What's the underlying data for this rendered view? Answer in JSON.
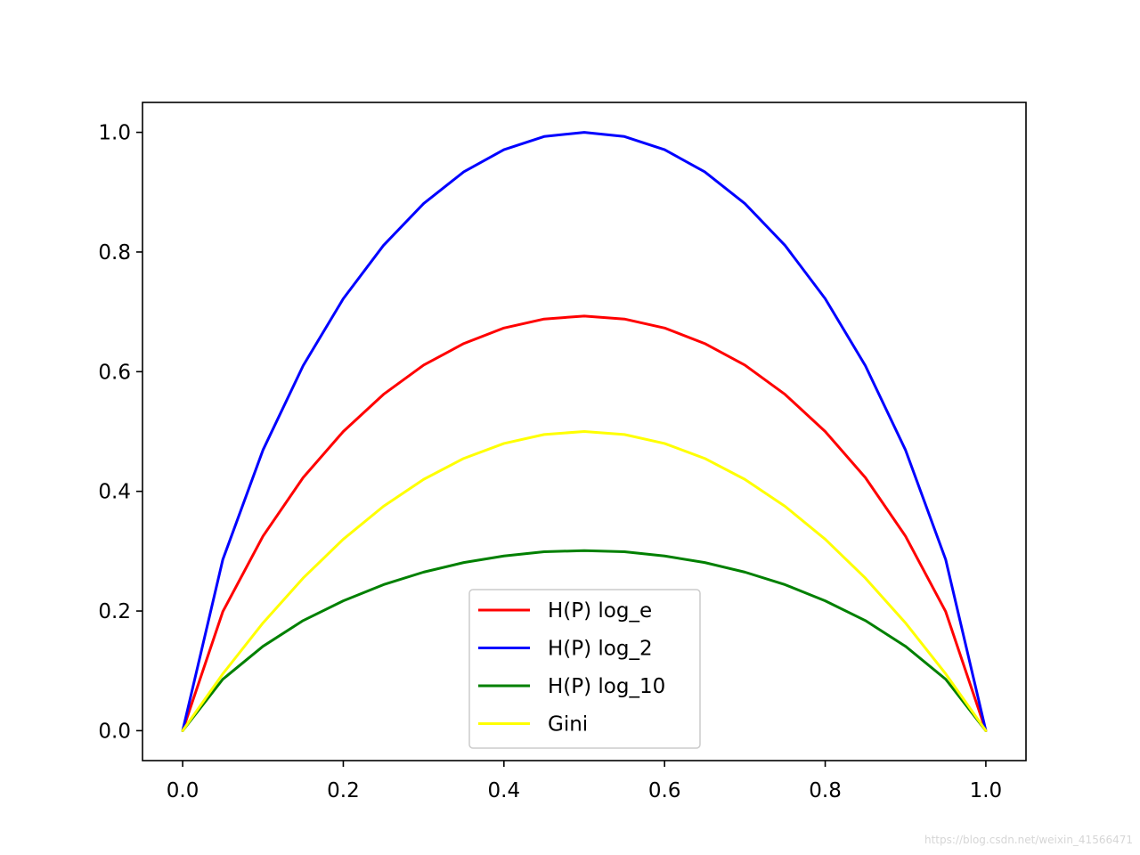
{
  "chart_data": {
    "type": "line",
    "title": "",
    "xlabel": "",
    "ylabel": "",
    "xlim": [
      -0.05,
      1.05
    ],
    "ylim": [
      -0.05,
      1.05
    ],
    "x_ticks": [
      0.0,
      0.2,
      0.4,
      0.6,
      0.8,
      1.0
    ],
    "x_tick_labels": [
      "0.0",
      "0.2",
      "0.4",
      "0.6",
      "0.8",
      "1.0"
    ],
    "y_ticks": [
      0.0,
      0.2,
      0.4,
      0.6,
      0.8,
      1.0
    ],
    "y_tick_labels": [
      "0.0",
      "0.2",
      "0.4",
      "0.6",
      "0.8",
      "1.0"
    ],
    "grid": false,
    "legend_position": "lower-center",
    "x": [
      0.0,
      0.05,
      0.1,
      0.15,
      0.2,
      0.25,
      0.3,
      0.35,
      0.4,
      0.45,
      0.5,
      0.55,
      0.6,
      0.65,
      0.7,
      0.75,
      0.8,
      0.85,
      0.9,
      0.95,
      1.0
    ],
    "series": [
      {
        "name": "H(P) log_e",
        "color": "#ff0000",
        "values": [
          0.0,
          0.199,
          0.325,
          0.423,
          0.5,
          0.562,
          0.611,
          0.647,
          0.673,
          0.688,
          0.693,
          0.688,
          0.673,
          0.647,
          0.611,
          0.562,
          0.5,
          0.423,
          0.325,
          0.199,
          0.0
        ]
      },
      {
        "name": "H(P) log_2",
        "color": "#0000ff",
        "values": [
          0.0,
          0.286,
          0.469,
          0.61,
          0.722,
          0.811,
          0.881,
          0.934,
          0.971,
          0.993,
          1.0,
          0.993,
          0.971,
          0.934,
          0.881,
          0.811,
          0.722,
          0.61,
          0.469,
          0.286,
          0.0
        ]
      },
      {
        "name": "H(P) log_10",
        "color": "#008000",
        "values": [
          0.0,
          0.086,
          0.141,
          0.184,
          0.217,
          0.244,
          0.265,
          0.281,
          0.292,
          0.299,
          0.301,
          0.299,
          0.292,
          0.281,
          0.265,
          0.244,
          0.217,
          0.184,
          0.141,
          0.086,
          0.0
        ]
      },
      {
        "name": "Gini",
        "color": "#ffff00",
        "values": [
          0.0,
          0.095,
          0.18,
          0.255,
          0.32,
          0.375,
          0.42,
          0.455,
          0.48,
          0.495,
          0.5,
          0.495,
          0.48,
          0.455,
          0.42,
          0.375,
          0.32,
          0.255,
          0.18,
          0.095,
          0.0
        ]
      }
    ]
  },
  "watermark": "https://blog.csdn.net/weixin_41566471"
}
